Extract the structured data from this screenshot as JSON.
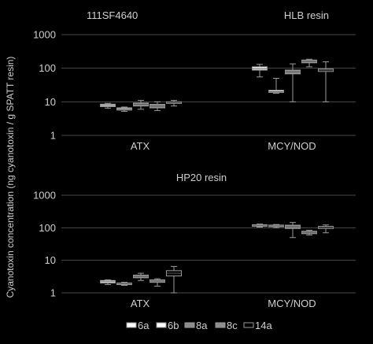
{
  "ylabel": "Cyanotoxin concentration (ng cyanotoxin / g SPATT resin)",
  "legend": [
    {
      "label": "6a",
      "fill": "#ffffff"
    },
    {
      "label": "6b",
      "fill": "#ffffff"
    },
    {
      "label": "8a",
      "fill": "#8c8c8c"
    },
    {
      "label": "8c",
      "fill": "#8c8c8c"
    },
    {
      "label": "14a",
      "fill": "#000000"
    }
  ],
  "chart_data": [
    {
      "type": "box",
      "id": "top",
      "labels": [
        "111SF4640",
        "HLB resin"
      ],
      "categories": [
        "ATX",
        "MCY/NOD"
      ],
      "yscale": "log",
      "ylim": [
        1,
        1000
      ],
      "yticks": [
        "1",
        "10",
        "100",
        "1000"
      ],
      "groups": [
        {
          "category": "ATX",
          "boxes": [
            {
              "series": "6a",
              "min": 6.5,
              "q1": 7.2,
              "median": 7.8,
              "q3": 8.5,
              "max": 9
            },
            {
              "series": "6b",
              "min": 5.2,
              "q1": 5.7,
              "median": 6.1,
              "q3": 6.6,
              "max": 7
            },
            {
              "series": "8a",
              "min": 6,
              "q1": 7.5,
              "median": 8.3,
              "q3": 9.2,
              "max": 11
            },
            {
              "series": "8c",
              "min": 5.5,
              "q1": 6.6,
              "median": 7.4,
              "q3": 8.4,
              "max": 10
            },
            {
              "series": "14a",
              "min": 7.5,
              "q1": 9,
              "median": 9.5,
              "q3": 10,
              "max": 11
            }
          ]
        },
        {
          "category": "MCY/NOD",
          "boxes": [
            {
              "series": "6a",
              "min": 55,
              "q1": 88,
              "median": 97,
              "q3": 110,
              "max": 130
            },
            {
              "series": "6b",
              "min": 18,
              "q1": 19,
              "median": 20,
              "q3": 22,
              "max": 50
            },
            {
              "series": "8a",
              "min": 10,
              "q1": 68,
              "median": 78,
              "q3": 88,
              "max": 135
            },
            {
              "series": "8c",
              "min": 110,
              "q1": 145,
              "median": 160,
              "q3": 175,
              "max": 185
            },
            {
              "series": "14a",
              "min": 10,
              "q1": 80,
              "median": 88,
              "q3": 95,
              "max": 155
            }
          ]
        }
      ]
    },
    {
      "type": "box",
      "id": "bottom",
      "labels": [
        "HP20 resin"
      ],
      "categories": [
        "ATX",
        "MCY/NOD"
      ],
      "yscale": "log",
      "ylim": [
        1,
        1000
      ],
      "yticks": [
        "1",
        "10",
        "100",
        "1000"
      ],
      "groups": [
        {
          "category": "ATX",
          "boxes": [
            {
              "series": "6a",
              "min": 1.8,
              "q1": 2.0,
              "median": 2.2,
              "q3": 2.4,
              "max": 2.5
            },
            {
              "series": "6b",
              "min": 1.7,
              "q1": 1.8,
              "median": 1.9,
              "q3": 2.0,
              "max": 2.1
            },
            {
              "series": "8a",
              "min": 2.4,
              "q1": 2.9,
              "median": 3.2,
              "q3": 3.5,
              "max": 4.0
            },
            {
              "series": "8c",
              "min": 1.6,
              "q1": 2.1,
              "median": 2.3,
              "q3": 2.5,
              "max": 2.7
            },
            {
              "series": "14a",
              "min": 1.0,
              "q1": 3.3,
              "median": 4.0,
              "q3": 4.8,
              "max": 6.5
            }
          ]
        },
        {
          "category": "MCY/NOD",
          "boxes": [
            {
              "series": "6a",
              "min": 105,
              "q1": 112,
              "median": 118,
              "q3": 124,
              "max": 130
            },
            {
              "series": "6b",
              "min": 100,
              "q1": 108,
              "median": 115,
              "q3": 121,
              "max": 126
            },
            {
              "series": "8a",
              "min": 50,
              "q1": 95,
              "median": 108,
              "q3": 120,
              "max": 145
            },
            {
              "series": "8c",
              "min": 60,
              "q1": 66,
              "median": 72,
              "q3": 78,
              "max": 84
            },
            {
              "series": "14a",
              "min": 70,
              "q1": 95,
              "median": 103,
              "q3": 110,
              "max": 122
            }
          ]
        }
      ]
    }
  ]
}
